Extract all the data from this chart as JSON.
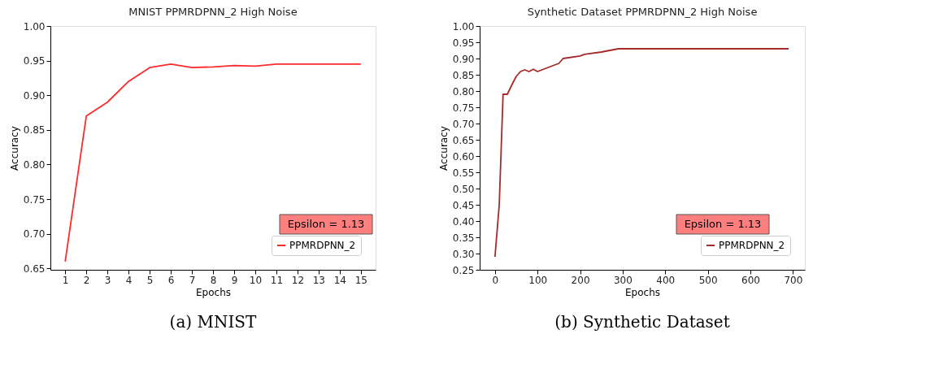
{
  "chart_data": [
    {
      "type": "line",
      "title": "MNIST PPMRDPNN_2 High Noise",
      "xlabel": "Epochs",
      "ylabel": "Accuracy",
      "x": [
        1,
        2,
        3,
        4,
        5,
        6,
        7,
        8,
        9,
        10,
        11,
        12,
        13,
        14,
        15
      ],
      "series": [
        {
          "name": "PPMRDPNN_2",
          "color": "#ff2a2a",
          "values": [
            0.66,
            0.87,
            0.89,
            0.92,
            0.94,
            0.945,
            0.94,
            0.941,
            0.943,
            0.942,
            0.945,
            0.945,
            0.945,
            0.945,
            0.945
          ]
        }
      ],
      "xlim": [
        0.3,
        15.7
      ],
      "xticks": [
        1,
        2,
        3,
        4,
        5,
        6,
        7,
        8,
        9,
        10,
        11,
        12,
        13,
        14,
        15
      ],
      "ylim": [
        0.648,
        1.0
      ],
      "yticks": [
        {
          "value": 0.65,
          "label": "0.65"
        },
        {
          "value": 0.7,
          "label": "0.70"
        },
        {
          "value": 0.75,
          "label": "0.75"
        },
        {
          "value": 0.8,
          "label": "0.80"
        },
        {
          "value": 0.85,
          "label": "0.85"
        },
        {
          "value": 0.9,
          "label": "0.90"
        },
        {
          "value": 0.95,
          "label": "0.95"
        },
        {
          "value": 1.0,
          "label": "1.00"
        }
      ],
      "grid": false,
      "legend": "bottom right",
      "marker": "none",
      "line_style": "solid",
      "annotations": [
        "Epsilon = 1.13",
        "(a) MNIST"
      ]
    },
    {
      "type": "line",
      "title": "Synthetic Dataset PPMRDPNN_2 High Noise",
      "xlabel": "Epochs",
      "ylabel": "Accuracy",
      "x": [
        0,
        10,
        19,
        29,
        40,
        50,
        60,
        70,
        80,
        90,
        100,
        130,
        150,
        160,
        200,
        210,
        250,
        290,
        690
      ],
      "series": [
        {
          "name": "PPMRDPNN_2",
          "color": "#a52a2a",
          "values": [
            0.29,
            0.45,
            0.79,
            0.79,
            0.82,
            0.845,
            0.86,
            0.865,
            0.86,
            0.867,
            0.86,
            0.875,
            0.885,
            0.9,
            0.908,
            0.913,
            0.92,
            0.93,
            0.93
          ]
        }
      ],
      "xlim": [
        -36,
        728
      ],
      "xticks": [
        0,
        100,
        200,
        300,
        400,
        500,
        600,
        700
      ],
      "ylim": [
        0.25,
        1.0
      ],
      "yticks": [
        {
          "value": 0.25,
          "label": "0.25"
        },
        {
          "value": 0.3,
          "label": "0.30"
        },
        {
          "value": 0.35,
          "label": "0.35"
        },
        {
          "value": 0.4,
          "label": "0.40"
        },
        {
          "value": 0.45,
          "label": "0.45"
        },
        {
          "value": 0.5,
          "label": "0.50"
        },
        {
          "value": 0.55,
          "label": "0.55"
        },
        {
          "value": 0.6,
          "label": "0.60"
        },
        {
          "value": 0.65,
          "label": "0.65"
        },
        {
          "value": 0.7,
          "label": "0.70"
        },
        {
          "value": 0.75,
          "label": "0.75"
        },
        {
          "value": 0.8,
          "label": "0.80"
        },
        {
          "value": 0.85,
          "label": "0.85"
        },
        {
          "value": 0.9,
          "label": "0.90"
        },
        {
          "value": 0.95,
          "label": "0.95"
        },
        {
          "value": 1.0,
          "label": "1.00"
        }
      ],
      "grid": false,
      "legend": "bottom right",
      "marker": "none",
      "line_style": "solid",
      "annotations": [
        "Epsilon = 1.13",
        "(b) Synthetic Dataset"
      ]
    }
  ]
}
